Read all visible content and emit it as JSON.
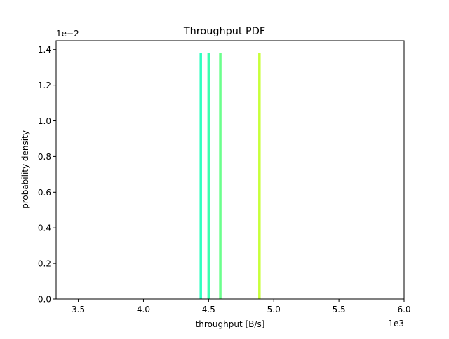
{
  "chart_data": {
    "type": "bar",
    "title": "Throughput PDF",
    "xlabel": "throughput [B/s]",
    "ylabel": "probability density",
    "x_multiplier_label": "1e3",
    "y_multiplier_label": "1e−2",
    "xlim": [
      3.33,
      6.0
    ],
    "ylim": [
      0.0,
      1.45
    ],
    "x_ticks": [
      3.5,
      4.0,
      4.5,
      5.0,
      5.5,
      6.0
    ],
    "x_tick_labels": [
      "3.5",
      "4.0",
      "4.5",
      "5.0",
      "5.5",
      "6.0"
    ],
    "y_ticks": [
      0.0,
      0.2,
      0.4,
      0.6,
      0.8,
      1.0,
      1.2,
      1.4
    ],
    "y_tick_labels": [
      "0.0",
      "0.2",
      "0.4",
      "0.6",
      "0.8",
      "1.0",
      "1.2",
      "1.4"
    ],
    "grid": false,
    "legend": "none",
    "bars": [
      {
        "x": 4.44,
        "value": 1.38,
        "color": "#2effc0"
      },
      {
        "x": 4.5,
        "value": 1.38,
        "color": "#3dffb0"
      },
      {
        "x": 4.59,
        "value": 1.38,
        "color": "#6bff8c"
      },
      {
        "x": 4.89,
        "value": 1.38,
        "color": "#c8ff3a"
      }
    ]
  }
}
